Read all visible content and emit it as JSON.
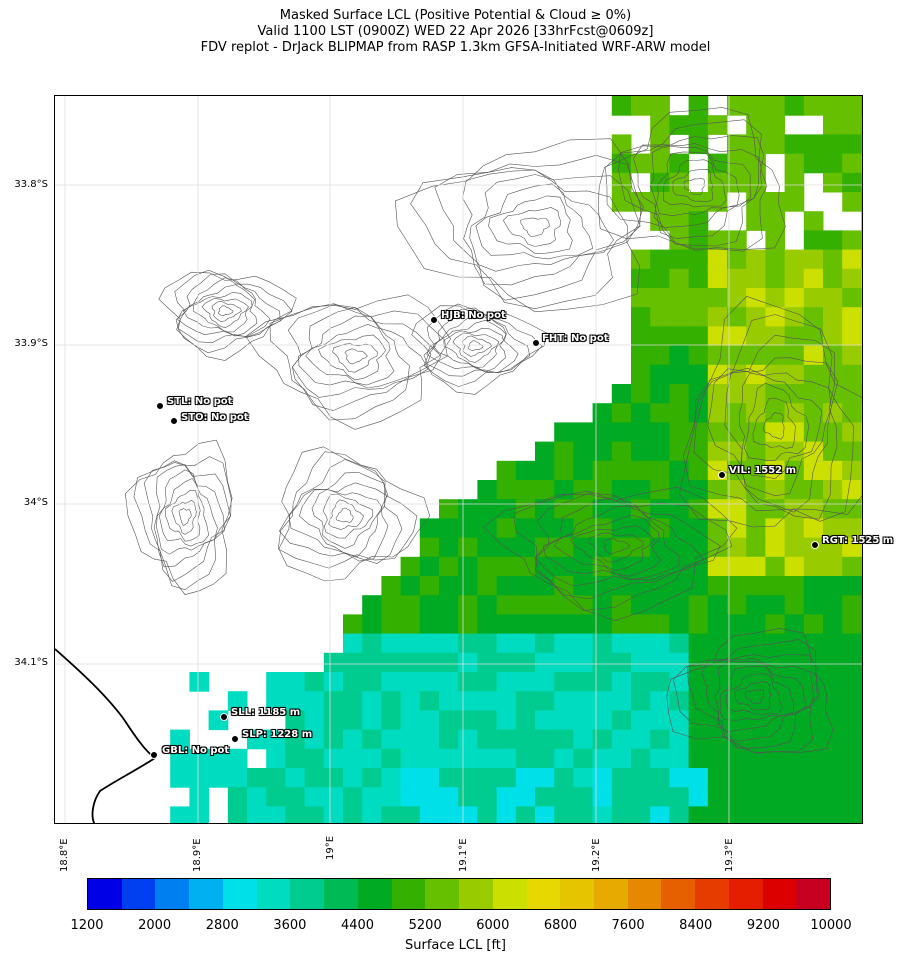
{
  "title": {
    "line1": "Masked Surface LCL (Positive Potential & Cloud ≥ 0%)",
    "line2": "Valid 1100 LST (0900Z) WED 22 Apr 2026 [33hrFcst@0609z]",
    "line3": "FDV replot - DrJack BLIPMAP from RASP 1.3km GFSA-Initiated WRF-ARW model"
  },
  "lat_labels": [
    "33.8°S",
    "33.9°S",
    "34°S",
    "34.1°S"
  ],
  "lon_labels": [
    "18.8°E",
    "18.9°E",
    "19°E",
    "19.1°E",
    "19.2°E",
    "19.3°E"
  ],
  "stations": [
    {
      "id": "HJB",
      "label": "HJB: No pot"
    },
    {
      "id": "FHT",
      "label": "FHT: No pot"
    },
    {
      "id": "STL",
      "label": "STL: No pot"
    },
    {
      "id": "STO",
      "label": "STO: No pot"
    },
    {
      "id": "VIL",
      "label": "VIL: 1552 m"
    },
    {
      "id": "RGT",
      "label": "RGT: 1525 m"
    },
    {
      "id": "SLL",
      "label": "SLL: 1185 m"
    },
    {
      "id": "SLP",
      "label": "SLP: 1228 m"
    },
    {
      "id": "GBL",
      "label": "GBL: No pot"
    }
  ],
  "colorbar": {
    "label": "Surface LCL [ft]",
    "tick_labels": [
      "1200",
      "2000",
      "2800",
      "3600",
      "4400",
      "5200",
      "6000",
      "6800",
      "7600",
      "8400",
      "9200",
      "10000"
    ],
    "colors": [
      "#0000e6",
      "#0040f0",
      "#0080f0",
      "#00b0f0",
      "#00e0e8",
      "#00dcc0",
      "#00cc90",
      "#00bb55",
      "#00aa22",
      "#33b000",
      "#66c000",
      "#99cc00",
      "#cce000",
      "#e6d800",
      "#e6c400",
      "#e6aa00",
      "#e68800",
      "#e66000",
      "#e63c00",
      "#e61e00",
      "#dc0000",
      "#c80020"
    ]
  }
}
